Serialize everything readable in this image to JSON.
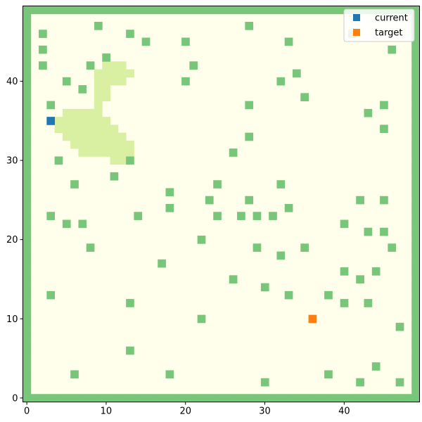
{
  "chart_data": {
    "type": "heatmap",
    "title": "",
    "xlabel": "",
    "ylabel": "",
    "xlim": [
      -0.5,
      49.5
    ],
    "ylim": [
      -0.5,
      49.5
    ],
    "xticks": [
      0,
      10,
      20,
      30,
      40
    ],
    "yticks": [
      0,
      10,
      20,
      30,
      40
    ],
    "grid": false,
    "legend": {
      "placement": "top-right",
      "entries": [
        {
          "label": "current",
          "color": "#1f77b4"
        },
        {
          "label": "target",
          "color": "#ff7f0e"
        }
      ]
    },
    "colors": {
      "free": "#ffffeb",
      "obstacle": "#78c679",
      "explored": "#d9f0a3",
      "current": "#1f77b4",
      "target": "#ff7f0e"
    },
    "grid_size": [
      50,
      50
    ],
    "border": "obstacle",
    "obstacles": [
      [
        2,
        46
      ],
      [
        9,
        47
      ],
      [
        13,
        46
      ],
      [
        28,
        47
      ],
      [
        15,
        45
      ],
      [
        20,
        45
      ],
      [
        33,
        45
      ],
      [
        2,
        44
      ],
      [
        46,
        44
      ],
      [
        10,
        43
      ],
      [
        2,
        42
      ],
      [
        8,
        42
      ],
      [
        21,
        42
      ],
      [
        34,
        41
      ],
      [
        5,
        40
      ],
      [
        20,
        40
      ],
      [
        32,
        40
      ],
      [
        7,
        39
      ],
      [
        35,
        38
      ],
      [
        3,
        37
      ],
      [
        28,
        37
      ],
      [
        45,
        37
      ],
      [
        43,
        36
      ],
      [
        45,
        34
      ],
      [
        28,
        33
      ],
      [
        26,
        31
      ],
      [
        4,
        30
      ],
      [
        13,
        30
      ],
      [
        11,
        28
      ],
      [
        6,
        27
      ],
      [
        24,
        27
      ],
      [
        32,
        27
      ],
      [
        18,
        26
      ],
      [
        23,
        25
      ],
      [
        28,
        25
      ],
      [
        42,
        25
      ],
      [
        45,
        25
      ],
      [
        18,
        24
      ],
      [
        33,
        24
      ],
      [
        3,
        23
      ],
      [
        14,
        23
      ],
      [
        24,
        23
      ],
      [
        27,
        23
      ],
      [
        29,
        23
      ],
      [
        31,
        23
      ],
      [
        5,
        22
      ],
      [
        7,
        22
      ],
      [
        40,
        22
      ],
      [
        43,
        21
      ],
      [
        45,
        21
      ],
      [
        22,
        20
      ],
      [
        8,
        19
      ],
      [
        29,
        19
      ],
      [
        35,
        19
      ],
      [
        46,
        19
      ],
      [
        32,
        18
      ],
      [
        17,
        17
      ],
      [
        40,
        16
      ],
      [
        44,
        16
      ],
      [
        26,
        15
      ],
      [
        42,
        15
      ],
      [
        30,
        14
      ],
      [
        3,
        13
      ],
      [
        33,
        13
      ],
      [
        38,
        13
      ],
      [
        13,
        12
      ],
      [
        40,
        12
      ],
      [
        43,
        12
      ],
      [
        22,
        10
      ],
      [
        47,
        9
      ],
      [
        13,
        6
      ],
      [
        44,
        4
      ],
      [
        6,
        3
      ],
      [
        18,
        3
      ],
      [
        38,
        3
      ],
      [
        30,
        2
      ],
      [
        42,
        2
      ],
      [
        47,
        2
      ],
      [
        41,
        46
      ]
    ],
    "explored": [
      [
        10,
        42
      ],
      [
        11,
        42
      ],
      [
        12,
        42
      ],
      [
        9,
        41
      ],
      [
        10,
        41
      ],
      [
        11,
        41
      ],
      [
        12,
        41
      ],
      [
        13,
        41
      ],
      [
        9,
        40
      ],
      [
        10,
        40
      ],
      [
        11,
        40
      ],
      [
        12,
        40
      ],
      [
        9,
        39
      ],
      [
        10,
        39
      ],
      [
        9,
        38
      ],
      [
        10,
        38
      ],
      [
        9,
        37
      ],
      [
        5,
        36
      ],
      [
        6,
        36
      ],
      [
        7,
        36
      ],
      [
        8,
        36
      ],
      [
        9,
        36
      ],
      [
        4,
        35
      ],
      [
        5,
        35
      ],
      [
        6,
        35
      ],
      [
        7,
        35
      ],
      [
        8,
        35
      ],
      [
        9,
        35
      ],
      [
        10,
        35
      ],
      [
        4,
        34
      ],
      [
        5,
        34
      ],
      [
        6,
        34
      ],
      [
        7,
        34
      ],
      [
        8,
        34
      ],
      [
        9,
        34
      ],
      [
        10,
        34
      ],
      [
        11,
        34
      ],
      [
        5,
        33
      ],
      [
        6,
        33
      ],
      [
        7,
        33
      ],
      [
        8,
        33
      ],
      [
        9,
        33
      ],
      [
        10,
        33
      ],
      [
        11,
        33
      ],
      [
        12,
        33
      ],
      [
        6,
        32
      ],
      [
        7,
        32
      ],
      [
        8,
        32
      ],
      [
        9,
        32
      ],
      [
        10,
        32
      ],
      [
        11,
        32
      ],
      [
        12,
        32
      ],
      [
        13,
        32
      ],
      [
        7,
        31
      ],
      [
        8,
        31
      ],
      [
        9,
        31
      ],
      [
        10,
        31
      ],
      [
        11,
        31
      ],
      [
        12,
        31
      ],
      [
        13,
        31
      ],
      [
        11,
        30
      ],
      [
        12,
        30
      ]
    ],
    "current": [
      3,
      35
    ],
    "target": [
      36,
      10
    ]
  }
}
